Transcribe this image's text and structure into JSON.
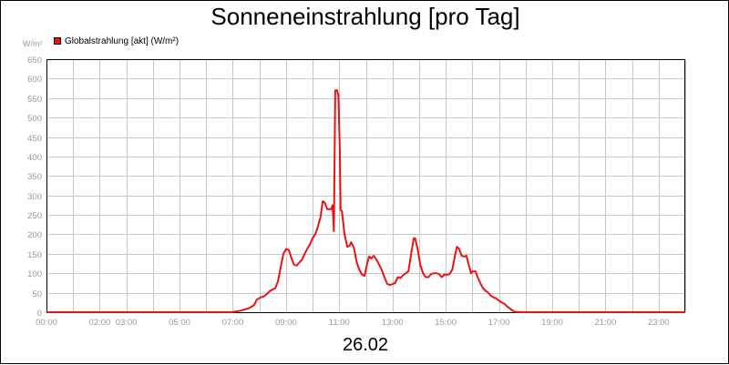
{
  "chart_data": {
    "type": "line",
    "title": "Sonneneinstrahlung [pro Tag]",
    "date_label": "26.02",
    "y_unit": "W/m²",
    "ylim": [
      0,
      650
    ],
    "y_ticks": [
      0,
      50,
      100,
      150,
      200,
      250,
      300,
      350,
      400,
      450,
      500,
      550,
      600,
      650
    ],
    "xlim": [
      0,
      24
    ],
    "x_tick_labels": [
      {
        "hour": 0,
        "label": "00:00"
      },
      {
        "hour": 2,
        "label": "02:00"
      },
      {
        "hour": 3,
        "label": "03:00"
      },
      {
        "hour": 5,
        "label": "05:00"
      },
      {
        "hour": 7,
        "label": "07:00"
      },
      {
        "hour": 9,
        "label": "09:00"
      },
      {
        "hour": 11,
        "label": "11:00"
      },
      {
        "hour": 13,
        "label": "13:00"
      },
      {
        "hour": 15,
        "label": "15:00"
      },
      {
        "hour": 17,
        "label": "17:00"
      },
      {
        "hour": 19,
        "label": "19:00"
      },
      {
        "hour": 21,
        "label": "21:00"
      },
      {
        "hour": 23,
        "label": "23:00"
      }
    ],
    "grid": true,
    "legend_placement": "top-left",
    "series": [
      {
        "name": "Globalstrahlung [akt] (W/m²)",
        "color": "#ee1111",
        "points": [
          [
            0,
            0
          ],
          [
            6.97,
            0
          ],
          [
            7.3,
            4
          ],
          [
            7.6,
            10
          ],
          [
            7.8,
            18
          ],
          [
            7.9,
            32
          ],
          [
            8.05,
            38
          ],
          [
            8.15,
            40
          ],
          [
            8.25,
            45
          ],
          [
            8.4,
            55
          ],
          [
            8.6,
            62
          ],
          [
            8.7,
            80
          ],
          [
            8.8,
            115
          ],
          [
            8.9,
            150
          ],
          [
            9.0,
            162
          ],
          [
            9.1,
            160
          ],
          [
            9.2,
            140
          ],
          [
            9.3,
            122
          ],
          [
            9.4,
            120
          ],
          [
            9.5,
            128
          ],
          [
            9.6,
            135
          ],
          [
            9.7,
            150
          ],
          [
            9.8,
            163
          ],
          [
            9.9,
            175
          ],
          [
            10.0,
            190
          ],
          [
            10.1,
            200
          ],
          [
            10.2,
            220
          ],
          [
            10.3,
            245
          ],
          [
            10.38,
            285
          ],
          [
            10.45,
            282
          ],
          [
            10.55,
            265
          ],
          [
            10.7,
            265
          ],
          [
            10.75,
            275
          ],
          [
            10.8,
            208
          ],
          [
            10.85,
            570
          ],
          [
            10.92,
            570
          ],
          [
            10.97,
            555
          ],
          [
            11.02,
            420
          ],
          [
            11.05,
            262
          ],
          [
            11.1,
            260
          ],
          [
            11.2,
            200
          ],
          [
            11.3,
            168
          ],
          [
            11.38,
            170
          ],
          [
            11.45,
            180
          ],
          [
            11.55,
            165
          ],
          [
            11.65,
            130
          ],
          [
            11.75,
            110
          ],
          [
            11.85,
            97
          ],
          [
            11.95,
            93
          ],
          [
            12.05,
            125
          ],
          [
            12.12,
            143
          ],
          [
            12.2,
            138
          ],
          [
            12.3,
            145
          ],
          [
            12.4,
            135
          ],
          [
            12.5,
            122
          ],
          [
            12.6,
            108
          ],
          [
            12.7,
            90
          ],
          [
            12.8,
            73
          ],
          [
            12.9,
            70
          ],
          [
            13.0,
            72
          ],
          [
            13.1,
            75
          ],
          [
            13.2,
            90
          ],
          [
            13.3,
            88
          ],
          [
            13.4,
            95
          ],
          [
            13.5,
            100
          ],
          [
            13.6,
            105
          ],
          [
            13.7,
            150
          ],
          [
            13.8,
            190
          ],
          [
            13.85,
            190
          ],
          [
            13.95,
            160
          ],
          [
            14.05,
            120
          ],
          [
            14.15,
            100
          ],
          [
            14.25,
            90
          ],
          [
            14.35,
            90
          ],
          [
            14.45,
            98
          ],
          [
            14.55,
            100
          ],
          [
            14.65,
            100
          ],
          [
            14.75,
            98
          ],
          [
            14.85,
            90
          ],
          [
            14.95,
            97
          ],
          [
            15.05,
            96
          ],
          [
            15.15,
            98
          ],
          [
            15.25,
            110
          ],
          [
            15.35,
            145
          ],
          [
            15.42,
            168
          ],
          [
            15.5,
            163
          ],
          [
            15.6,
            145
          ],
          [
            15.7,
            143
          ],
          [
            15.78,
            145
          ],
          [
            15.85,
            125
          ],
          [
            15.95,
            100
          ],
          [
            16.02,
            105
          ],
          [
            16.12,
            105
          ],
          [
            16.2,
            90
          ],
          [
            16.3,
            75
          ],
          [
            16.4,
            62
          ],
          [
            16.5,
            55
          ],
          [
            16.6,
            50
          ],
          [
            16.7,
            42
          ],
          [
            16.8,
            38
          ],
          [
            16.9,
            35
          ],
          [
            17.0,
            30
          ],
          [
            17.1,
            25
          ],
          [
            17.2,
            22
          ],
          [
            17.3,
            15
          ],
          [
            17.4,
            10
          ],
          [
            17.5,
            5
          ],
          [
            17.6,
            1
          ],
          [
            17.8,
            0
          ],
          [
            24,
            0
          ]
        ]
      }
    ]
  }
}
